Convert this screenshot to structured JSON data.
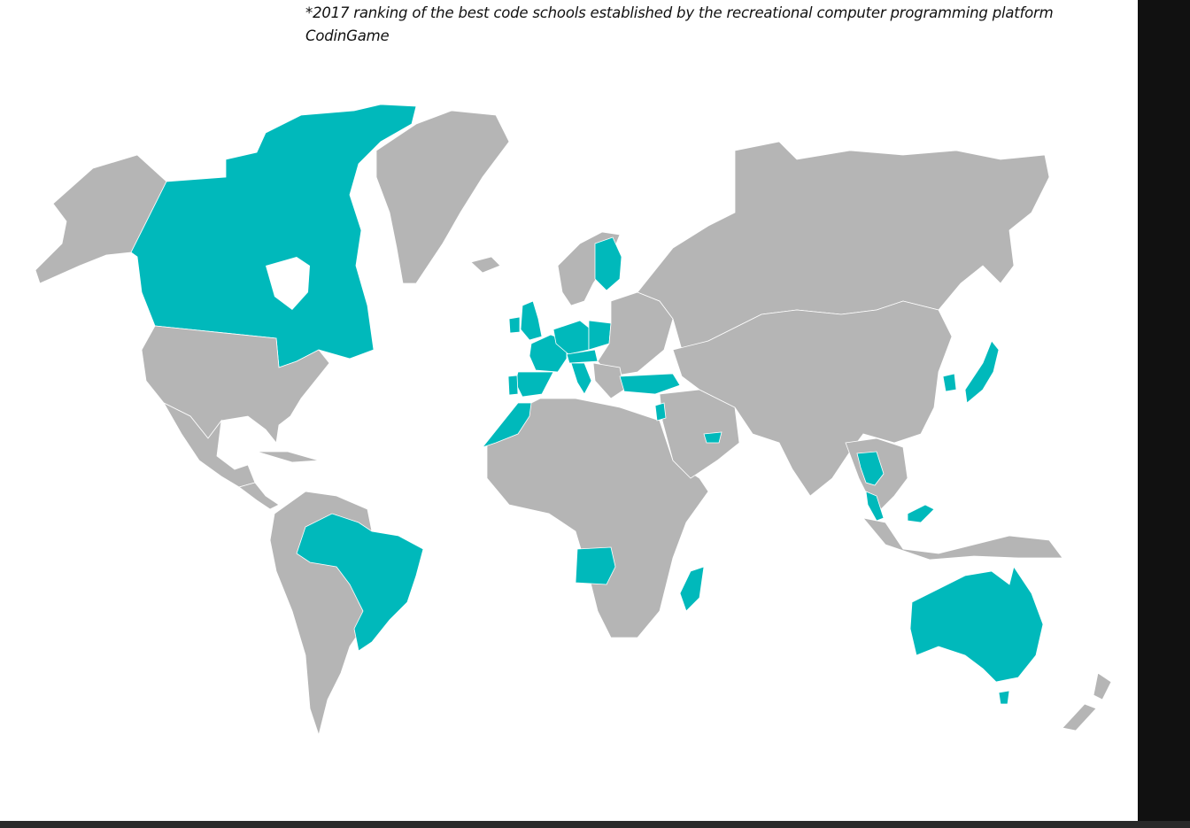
{
  "footnote": {
    "marker": "*",
    "text": "2017 ranking of the best code schools established by the recreational computer programming platform CodinGame"
  },
  "map": {
    "colors": {
      "highlight": "#00b9bb",
      "land": "#b5b5b5",
      "water": "#ffffff"
    },
    "highlighted_countries": [
      "Canada",
      "Brazil",
      "United Kingdom",
      "Ireland",
      "France",
      "Spain",
      "Portugal",
      "Belgium",
      "Netherlands",
      "Germany",
      "Switzerland",
      "Austria",
      "Czech Republic",
      "Poland",
      "Italy",
      "Finland",
      "Turkey",
      "Morocco",
      "Jordan",
      "United Arab Emirates",
      "Angola",
      "Madagascar",
      "Thailand",
      "Malaysia",
      "South Korea",
      "Japan",
      "Australia"
    ]
  }
}
